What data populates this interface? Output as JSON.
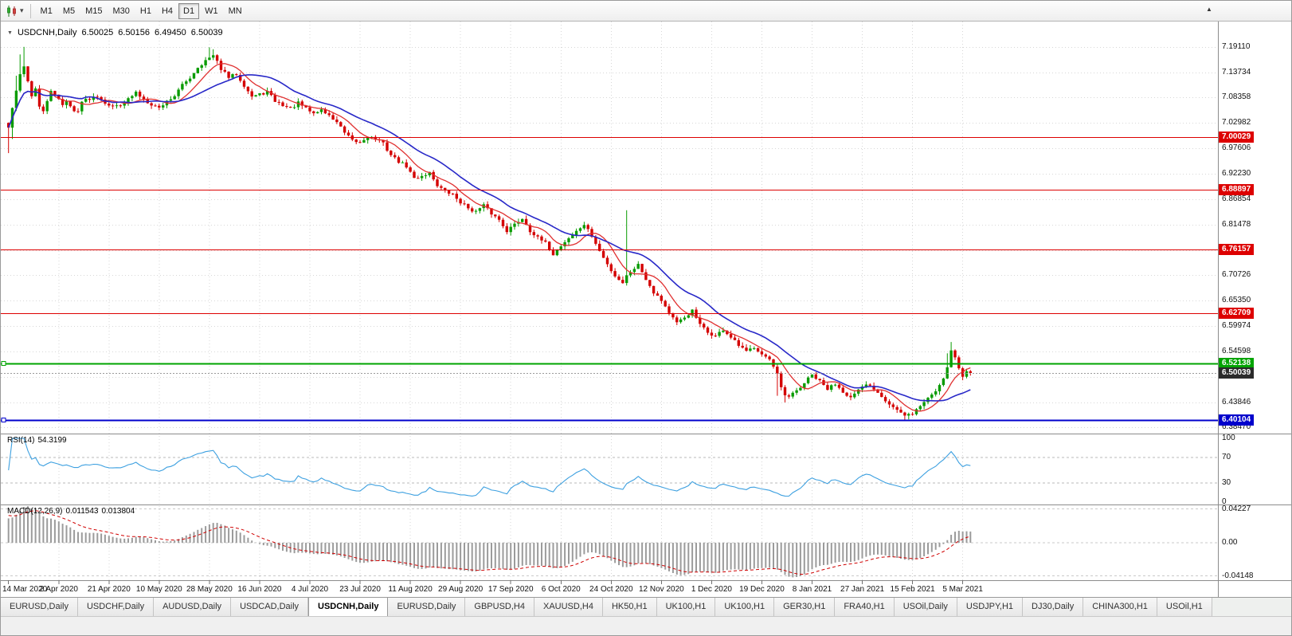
{
  "toolbar": {
    "timeframes": [
      "M1",
      "M5",
      "M15",
      "M30",
      "H1",
      "H4",
      "D1",
      "W1",
      "MN"
    ],
    "active_timeframe": "D1"
  },
  "chart": {
    "symbol": "USDCNH,Daily",
    "ohlc": {
      "open": "6.50025",
      "high": "6.50156",
      "low": "6.49450",
      "close": "6.50039"
    }
  },
  "price_axis": {
    "ticks": [
      "7.19110",
      "7.13734",
      "7.08358",
      "7.02982",
      "6.97606",
      "6.92230",
      "6.86854",
      "6.81478",
      "6.76102",
      "6.70726",
      "6.65350",
      "6.59974",
      "6.54598",
      "6.49222",
      "6.43846",
      "6.38470"
    ],
    "levels": [
      {
        "label": "7.00029",
        "price": 7.00029,
        "color": "#dd0000",
        "kind": "hline",
        "width": 1
      },
      {
        "label": "6.88897",
        "price": 6.88897,
        "color": "#dd0000",
        "kind": "hline",
        "width": 1
      },
      {
        "label": "6.76157",
        "price": 6.76157,
        "color": "#dd0000",
        "kind": "hline",
        "width": 1
      },
      {
        "label": "6.62709",
        "price": 6.62709,
        "color": "#dd0000",
        "kind": "hline",
        "width": 1
      },
      {
        "label": "6.52138",
        "price": 6.52138,
        "color": "#00a400",
        "kind": "hline",
        "width": 2
      },
      {
        "label": "6.50039",
        "price": 6.50039,
        "color": "#2b2b2b",
        "kind": "current-price",
        "width": 1
      },
      {
        "label": "6.40104",
        "price": 6.40104,
        "color": "#0000cc",
        "kind": "hline",
        "width": 2
      }
    ]
  },
  "time_axis": {
    "labels": [
      "14 Mar 2020",
      "2 Apr 2020",
      "21 Apr 2020",
      "10 May 2020",
      "28 May 2020",
      "16 Jun 2020",
      "4 Jul 2020",
      "23 Jul 2020",
      "11 Aug 2020",
      "29 Aug 2020",
      "17 Sep 2020",
      "6 Oct 2020",
      "24 Oct 2020",
      "12 Nov 2020",
      "1 Dec 2020",
      "19 Dec 2020",
      "8 Jan 2021",
      "27 Jan 2021",
      "15 Feb 2021",
      "5 Mar 2021"
    ],
    "label_step": 13
  },
  "rsi": {
    "label": "RSI(14)",
    "value": "54.3199",
    "levels": [
      "100",
      "70",
      "30",
      "0"
    ]
  },
  "macd": {
    "label": "MACD(12,26,9)",
    "value_main": "0.011543",
    "value_signal": "0.013804",
    "axis": [
      "0.04227",
      "0.00",
      "-0.04148"
    ]
  },
  "tabs": {
    "active_index": 4,
    "items": [
      "EURUSD,Daily",
      "USDCHF,Daily",
      "AUDUSD,Daily",
      "USDCAD,Daily",
      "USDCNH,Daily",
      "EURUSD,Daily",
      "GBPUSD,H4",
      "XAUUSD,H4",
      "HK50,H1",
      "UK100,H1",
      "UK100,H1",
      "GER30,H1",
      "FRA40,H1",
      "USOil,Daily",
      "USDJPY,H1",
      "DJ30,Daily",
      "CHINA300,H1",
      "USOil,H1"
    ]
  },
  "chart_data": {
    "type": "candlestick",
    "symbol": "USDCNH",
    "timeframe": "Daily",
    "title": "USDCNH,Daily",
    "current_ohlc": {
      "open": 6.50025,
      "high": 6.50156,
      "low": 6.4945,
      "close": 6.50039
    },
    "num_candles": 250,
    "final_close": 6.50039,
    "y_range": [
      6.372,
      7.238
    ],
    "noise_seed": 42,
    "close_amp": 0.007,
    "wick_amp": 0.0075,
    "colors": {
      "up": "#089b00",
      "down": "#d40000",
      "grid": "#d7d7d7",
      "histogram": "#9b9b9b"
    },
    "trend_anchors": [
      [
        0,
        7.02
      ],
      [
        1,
        7.062
      ],
      [
        2,
        7.096
      ],
      [
        3,
        7.132
      ],
      [
        4,
        7.152
      ],
      [
        5,
        7.118
      ],
      [
        6,
        7.088
      ],
      [
        7,
        7.102
      ],
      [
        8,
        7.062
      ],
      [
        9,
        7.055
      ],
      [
        10,
        7.078
      ],
      [
        11,
        7.095
      ],
      [
        12,
        7.088
      ],
      [
        13,
        7.082
      ],
      [
        14,
        7.07
      ],
      [
        15,
        7.076
      ],
      [
        16,
        7.064
      ],
      [
        17,
        7.054
      ],
      [
        18,
        7.058
      ],
      [
        19,
        7.075
      ],
      [
        21,
        7.082
      ],
      [
        23,
        7.088
      ],
      [
        25,
        7.074
      ],
      [
        27,
        7.064
      ],
      [
        29,
        7.07
      ],
      [
        31,
        7.08
      ],
      [
        33,
        7.094
      ],
      [
        35,
        7.08
      ],
      [
        37,
        7.07
      ],
      [
        39,
        7.062
      ],
      [
        41,
        7.076
      ],
      [
        43,
        7.088
      ],
      [
        45,
        7.11
      ],
      [
        47,
        7.126
      ],
      [
        49,
        7.148
      ],
      [
        51,
        7.162
      ],
      [
        53,
        7.172
      ],
      [
        55,
        7.145
      ],
      [
        57,
        7.126
      ],
      [
        59,
        7.134
      ],
      [
        61,
        7.11
      ],
      [
        63,
        7.086
      ],
      [
        65,
        7.09
      ],
      [
        67,
        7.096
      ],
      [
        69,
        7.076
      ],
      [
        71,
        7.068
      ],
      [
        73,
        7.06
      ],
      [
        75,
        7.072
      ],
      [
        77,
        7.06
      ],
      [
        79,
        7.05
      ],
      [
        81,
        7.058
      ],
      [
        83,
        7.045
      ],
      [
        85,
        7.032
      ],
      [
        87,
        7.008
      ],
      [
        89,
        6.992
      ],
      [
        91,
        6.988
      ],
      [
        93,
        7.002
      ],
      [
        95,
        6.996
      ],
      [
        97,
        6.986
      ],
      [
        99,
        6.962
      ],
      [
        101,
        6.948
      ],
      [
        103,
        6.938
      ],
      [
        105,
        6.912
      ],
      [
        107,
        6.918
      ],
      [
        109,
        6.925
      ],
      [
        111,
        6.898
      ],
      [
        113,
        6.885
      ],
      [
        115,
        6.878
      ],
      [
        117,
        6.862
      ],
      [
        119,
        6.85
      ],
      [
        121,
        6.842
      ],
      [
        123,
        6.855
      ],
      [
        125,
        6.838
      ],
      [
        127,
        6.825
      ],
      [
        129,
        6.802
      ],
      [
        131,
        6.815
      ],
      [
        133,
        6.828
      ],
      [
        135,
        6.802
      ],
      [
        137,
        6.786
      ],
      [
        139,
        6.775
      ],
      [
        141,
        6.752
      ],
      [
        143,
        6.77
      ],
      [
        145,
        6.786
      ],
      [
        147,
        6.8
      ],
      [
        149,
        6.815
      ],
      [
        151,
        6.79
      ],
      [
        153,
        6.758
      ],
      [
        155,
        6.73
      ],
      [
        157,
        6.706
      ],
      [
        159,
        6.692
      ],
      [
        160,
        6.706
      ],
      [
        161,
        6.716
      ],
      [
        163,
        6.73
      ],
      [
        165,
        6.7
      ],
      [
        167,
        6.672
      ],
      [
        169,
        6.655
      ],
      [
        171,
        6.628
      ],
      [
        173,
        6.605
      ],
      [
        175,
        6.618
      ],
      [
        177,
        6.632
      ],
      [
        179,
        6.602
      ],
      [
        181,
        6.586
      ],
      [
        183,
        6.578
      ],
      [
        185,
        6.592
      ],
      [
        187,
        6.575
      ],
      [
        189,
        6.558
      ],
      [
        191,
        6.545
      ],
      [
        193,
        6.556
      ],
      [
        195,
        6.542
      ],
      [
        197,
        6.528
      ],
      [
        199,
        6.496
      ],
      [
        200,
        6.468
      ],
      [
        201,
        6.452
      ],
      [
        202,
        6.448
      ],
      [
        203,
        6.456
      ],
      [
        205,
        6.47
      ],
      [
        207,
        6.488
      ],
      [
        208,
        6.496
      ],
      [
        210,
        6.482
      ],
      [
        212,
        6.466
      ],
      [
        214,
        6.478
      ],
      [
        216,
        6.462
      ],
      [
        218,
        6.448
      ],
      [
        220,
        6.462
      ],
      [
        222,
        6.476
      ],
      [
        224,
        6.468
      ],
      [
        226,
        6.452
      ],
      [
        228,
        6.435
      ],
      [
        230,
        6.422
      ],
      [
        232,
        6.408
      ],
      [
        234,
        6.415
      ],
      [
        236,
        6.43
      ],
      [
        238,
        6.448
      ],
      [
        240,
        6.462
      ],
      [
        242,
        6.49
      ],
      [
        243,
        6.515
      ],
      [
        244,
        6.548
      ],
      [
        245,
        6.535
      ],
      [
        246,
        6.51
      ],
      [
        247,
        6.492
      ],
      [
        248,
        6.503
      ],
      [
        249,
        6.50039
      ]
    ],
    "wick_overrides": {
      "0": {
        "l": 6.966
      },
      "1": {
        "l": 6.996
      },
      "2": {
        "h": 7.13
      },
      "3": {
        "h": 7.175
      },
      "4": {
        "h": 7.191
      },
      "52": {
        "h": 7.19
      },
      "53": {
        "h": 7.186
      },
      "160": {
        "h": 6.845
      },
      "199": {
        "l": 6.452
      },
      "201": {
        "l": 6.438
      },
      "232": {
        "l": 6.401
      },
      "233": {
        "l": 6.402
      },
      "243": {
        "h": 6.542
      },
      "244": {
        "h": 6.566
      }
    },
    "overlays": [
      {
        "name": "ma-fast",
        "type": "sma",
        "period": 8,
        "color": "#e03030"
      },
      {
        "name": "ma-slow",
        "type": "sma",
        "period": 20,
        "color": "#2828c8"
      }
    ],
    "indicator_panes": [
      {
        "name": "rsi",
        "label": "RSI(14)",
        "current": 54.3199,
        "line_color": "#3da0e0",
        "levels": [
          100,
          70,
          30,
          0
        ]
      },
      {
        "name": "macd",
        "label": "MACD(12,26,9)",
        "main": 0.011543,
        "signal": 0.013804,
        "axis": [
          0.04227,
          0.0,
          -0.04148
        ]
      }
    ]
  }
}
